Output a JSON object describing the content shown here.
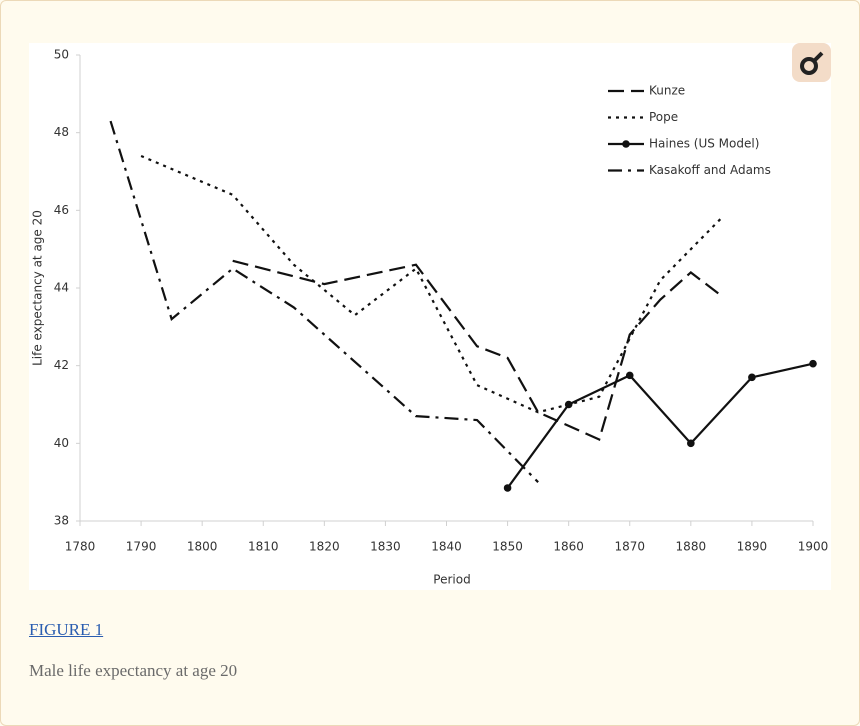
{
  "chart_data": {
    "type": "line",
    "x_label": "Period",
    "y_label": "Life expectancy at age 20",
    "xlim": [
      1780,
      1900
    ],
    "xticks": [
      1780,
      1790,
      1800,
      1810,
      1820,
      1830,
      1840,
      1850,
      1860,
      1870,
      1880,
      1890,
      1900
    ],
    "ylim": [
      38,
      50
    ],
    "yticks": [
      38,
      40,
      42,
      44,
      46,
      48,
      50
    ],
    "grid": false,
    "legend": "top-right",
    "series": [
      {
        "name": "Kunze",
        "color": "#111111",
        "line_style": "dashed",
        "x": [
          1805,
          1820,
          1835,
          1845,
          1850,
          1855,
          1865,
          1870,
          1875,
          1880,
          1885
        ],
        "values": [
          44.7,
          44.1,
          44.6,
          42.5,
          42.2,
          40.8,
          40.1,
          42.8,
          43.7,
          44.4,
          43.8
        ]
      },
      {
        "name": "Pope",
        "color": "#111111",
        "line_style": "dotted",
        "x": [
          1790,
          1805,
          1815,
          1825,
          1835,
          1845,
          1855,
          1865,
          1870,
          1875,
          1880,
          1885
        ],
        "values": [
          47.4,
          46.4,
          44.6,
          43.3,
          44.5,
          41.5,
          40.8,
          41.2,
          42.7,
          44.2,
          45.0,
          45.8
        ]
      },
      {
        "name": "Haines (US Model)",
        "color": "#111111",
        "line_style": "solid",
        "marker": "circle",
        "x": [
          1850,
          1860,
          1870,
          1880,
          1890,
          1900
        ],
        "values": [
          38.85,
          41.0,
          41.75,
          40.0,
          41.7,
          42.05
        ]
      },
      {
        "name": "Kasakoff and Adams",
        "color": "#111111",
        "line_style": "dash-dot",
        "x": [
          1785,
          1795,
          1805,
          1815,
          1825,
          1835,
          1845,
          1855
        ],
        "values": [
          48.3,
          43.2,
          44.5,
          43.5,
          42.1,
          40.7,
          40.6,
          39.0
        ]
      }
    ]
  },
  "figure": {
    "link": "FIGURE 1",
    "caption": "Male life expectancy at age 20"
  }
}
